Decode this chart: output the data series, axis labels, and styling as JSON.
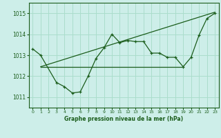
{
  "title": "Graphe pression niveau de la mer (hPa)",
  "background_color": "#cdeee9",
  "grid_color": "#aaddcc",
  "line_color": "#1a5c1a",
  "xlim": [
    -0.5,
    23.5
  ],
  "ylim": [
    1010.5,
    1015.5
  ],
  "yticks": [
    1011,
    1012,
    1013,
    1014,
    1015
  ],
  "xticks": [
    0,
    1,
    2,
    3,
    4,
    5,
    6,
    7,
    8,
    9,
    10,
    11,
    12,
    13,
    14,
    15,
    16,
    17,
    18,
    19,
    20,
    21,
    22,
    23
  ],
  "series_main_x": [
    0,
    1,
    3,
    4,
    5,
    6,
    7,
    8,
    9,
    10,
    11,
    12,
    13,
    14,
    15,
    16,
    17,
    18,
    19,
    20,
    21,
    22,
    23
  ],
  "series_main_y": [
    1013.3,
    1013.0,
    1011.7,
    1011.5,
    1011.2,
    1011.25,
    1012.0,
    1012.85,
    1013.35,
    1014.0,
    1013.6,
    1013.7,
    1013.65,
    1013.65,
    1013.1,
    1013.1,
    1012.9,
    1012.9,
    1012.45,
    1012.9,
    1013.95,
    1014.75,
    1015.0
  ],
  "flat_line_x": [
    1,
    19
  ],
  "flat_line_y": [
    1012.45,
    1012.45
  ],
  "trend_line_x": [
    1,
    23
  ],
  "trend_line_y": [
    1012.45,
    1015.05
  ]
}
